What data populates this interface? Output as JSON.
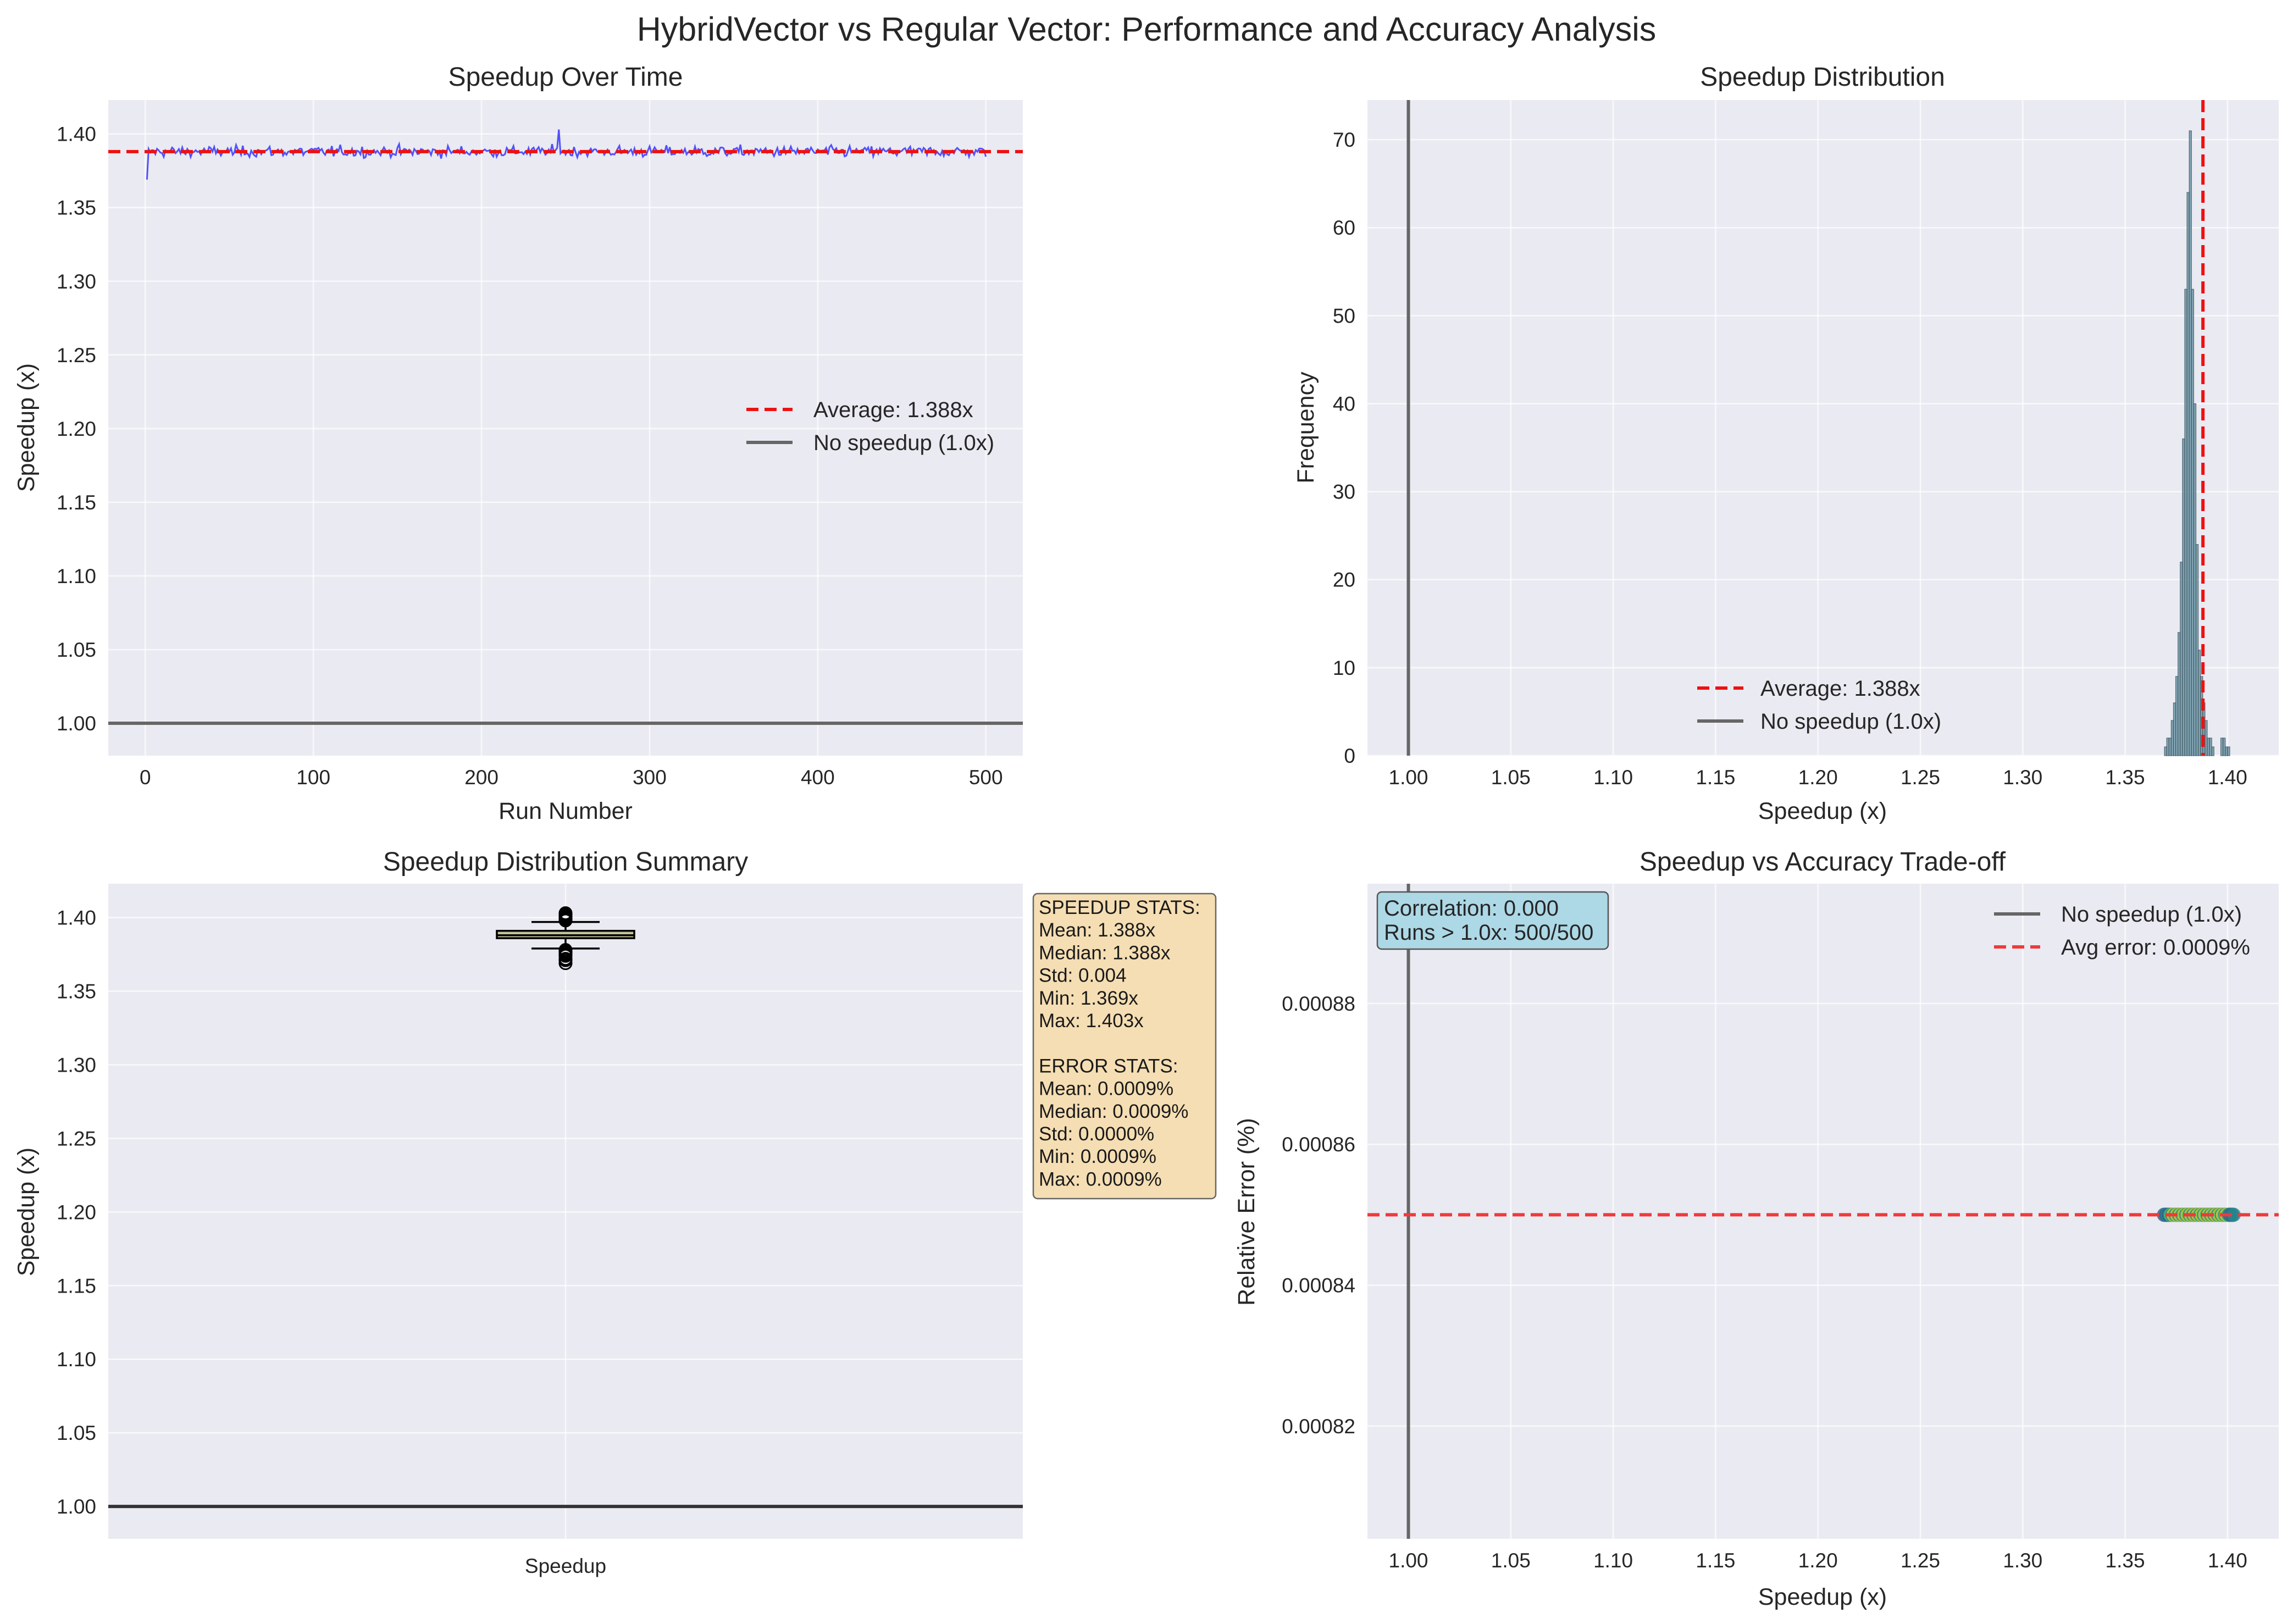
{
  "figure": {
    "title": "HybridVector vs Regular Vector: Performance and Accuracy Analysis"
  },
  "colors": {
    "axes_background": "#eaeaf2",
    "speedup_line": "#2b2bff",
    "average_line": "#ee1111",
    "baseline": "#666666",
    "hist_bar": "#6e97a8",
    "box_fill": "#c2c29a",
    "stats_box": "#f5deb3",
    "corr_box": "#add8e6",
    "avg_error_line": "#f03a3a"
  },
  "chart_data": [
    {
      "id": "speedup_over_time",
      "type": "line",
      "title": "Speedup Over Time",
      "xlabel": "Run Number",
      "ylabel": "Speedup (x)",
      "xlim": [
        -22,
        522
      ],
      "ylim": [
        0.978,
        1.423
      ],
      "xticks": [
        0,
        100,
        200,
        300,
        400,
        500
      ],
      "yticks": [
        1.0,
        1.05,
        1.1,
        1.15,
        1.2,
        1.25,
        1.3,
        1.35,
        1.4
      ],
      "ytick_labels": [
        "1.00",
        "1.05",
        "1.10",
        "1.15",
        "1.20",
        "1.25",
        "1.30",
        "1.35",
        "1.40"
      ],
      "grid": true,
      "legend_position": "center-right",
      "series": [
        {
          "name": "",
          "style": "line",
          "x_start": 1,
          "x_step": 1,
          "count": 500,
          "mean": 1.388,
          "min": 1.369,
          "max": 1.403,
          "std": 0.004
        }
      ],
      "reference_lines": [
        {
          "orientation": "horizontal",
          "value": 1.388,
          "label": "Average: 1.388x",
          "style": "dashed",
          "color": "#ee1111"
        },
        {
          "orientation": "horizontal",
          "value": 1.0,
          "label": "No speedup (1.0x)",
          "style": "solid",
          "color": "#666666"
        }
      ]
    },
    {
      "id": "speedup_distribution",
      "type": "bar",
      "title": "Speedup Distribution",
      "xlabel": "Speedup (x)",
      "ylabel": "Frequency",
      "xlim": [
        0.98,
        1.425
      ],
      "ylim": [
        0,
        74.5
      ],
      "xticks": [
        1.0,
        1.05,
        1.1,
        1.15,
        1.2,
        1.25,
        1.3,
        1.35,
        1.4
      ],
      "xtick_labels": [
        "1.00",
        "1.05",
        "1.10",
        "1.15",
        "1.20",
        "1.25",
        "1.30",
        "1.35",
        "1.40"
      ],
      "yticks": [
        0,
        10,
        20,
        30,
        40,
        50,
        60,
        70
      ],
      "grid": true,
      "legend_position": "lower-center",
      "bins": {
        "start": 1.3692,
        "width": 0.0011,
        "counts": [
          1,
          2,
          2,
          4,
          6,
          9,
          14,
          22,
          36,
          53,
          64,
          71,
          53,
          40,
          24,
          12,
          9,
          6,
          4,
          2,
          2,
          1,
          0,
          0,
          0,
          2,
          2,
          1,
          1
        ]
      },
      "reference_lines": [
        {
          "orientation": "vertical",
          "value": 1.388,
          "label": "Average: 1.388x",
          "style": "dashed",
          "color": "#ee1111"
        },
        {
          "orientation": "vertical",
          "value": 1.0,
          "label": "No speedup (1.0x)",
          "style": "solid",
          "color": "#666666"
        }
      ]
    },
    {
      "id": "speedup_distribution_summary",
      "type": "box",
      "title": "Speedup Distribution Summary",
      "xlabel": "",
      "ylabel": "Speedup (x)",
      "ylim": [
        0.978,
        1.423
      ],
      "yticks": [
        1.0,
        1.05,
        1.1,
        1.15,
        1.2,
        1.25,
        1.3,
        1.35,
        1.4
      ],
      "ytick_labels": [
        "1.00",
        "1.05",
        "1.10",
        "1.15",
        "1.20",
        "1.25",
        "1.30",
        "1.35",
        "1.40"
      ],
      "categories": [
        "Speedup"
      ],
      "grid": true,
      "box": {
        "q1": 1.386,
        "median": 1.388,
        "q3": 1.391,
        "whisker_low": 1.379,
        "whisker_high": 1.397,
        "outliers": [
          1.369,
          1.371,
          1.372,
          1.374,
          1.375,
          1.376,
          1.377,
          1.378,
          1.398,
          1.399,
          1.4,
          1.401,
          1.402,
          1.403
        ]
      },
      "reference_lines": [
        {
          "orientation": "horizontal",
          "value": 1.0,
          "label": "",
          "style": "solid",
          "color": "#333333"
        }
      ],
      "stats_text": [
        "SPEEDUP STATS:",
        "Mean: 1.388x",
        "Median: 1.388x",
        "Std: 0.004",
        "Min: 1.369x",
        "Max: 1.403x",
        "",
        "ERROR STATS:",
        "Mean: 0.0009%",
        "Median: 0.0009%",
        "Std: 0.0000%",
        "Min: 0.0009%",
        "Max: 0.0009%"
      ]
    },
    {
      "id": "speedup_vs_accuracy",
      "type": "scatter",
      "title": "Speedup vs Accuracy Trade-off",
      "xlabel": "Speedup (x)",
      "ylabel": "Relative Error (%)",
      "xlim": [
        0.98,
        1.425
      ],
      "ylim": [
        0.000804,
        0.000897
      ],
      "xticks": [
        1.0,
        1.05,
        1.1,
        1.15,
        1.2,
        1.25,
        1.3,
        1.35,
        1.4
      ],
      "xtick_labels": [
        "1.00",
        "1.05",
        "1.10",
        "1.15",
        "1.20",
        "1.25",
        "1.30",
        "1.35",
        "1.40"
      ],
      "yticks": [
        0.00082,
        0.00084,
        0.00086,
        0.00088
      ],
      "ytick_labels": [
        "0.00082",
        "0.00084",
        "0.00086",
        "0.00088"
      ],
      "grid": true,
      "legend_position": "upper-right",
      "points": {
        "x_min": 1.369,
        "x_max": 1.403,
        "y": 0.00085,
        "count": 500
      },
      "reference_lines": [
        {
          "orientation": "vertical",
          "value": 1.0,
          "label": "No speedup (1.0x)",
          "style": "solid",
          "color": "#666666"
        },
        {
          "orientation": "horizontal",
          "value": 0.00085,
          "label": "Avg error: 0.0009%",
          "style": "dashed",
          "color": "#f03a3a"
        }
      ],
      "annotation_text": [
        "Correlation: 0.000",
        "Runs > 1.0x: 500/500"
      ]
    }
  ]
}
